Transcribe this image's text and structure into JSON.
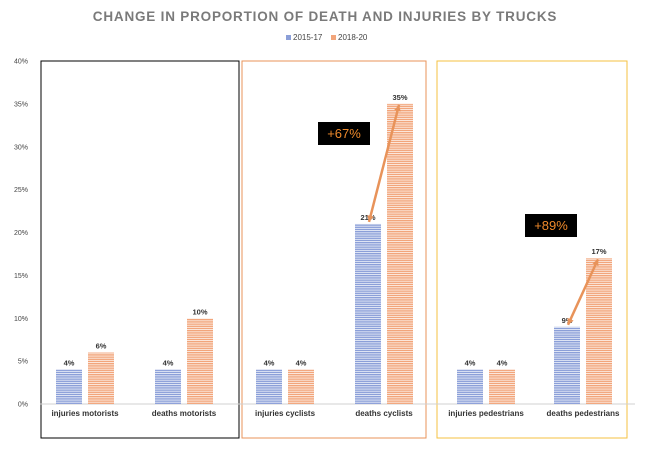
{
  "chart_data": {
    "type": "bar",
    "title": "CHANGE IN PROPORTION OF DEATH AND INJURIES BY TRUCKS",
    "xlabel": "",
    "ylabel": "",
    "ylim": [
      0,
      40
    ],
    "yticks": [
      "0%",
      "5%",
      "10%",
      "15%",
      "20%",
      "25%",
      "30%",
      "35%",
      "40%"
    ],
    "categories": [
      "injuries motorists",
      "deaths motorists",
      "injuries cyclists",
      "deaths cyclists",
      "injuries pedestrians",
      "deaths pedestrians"
    ],
    "series": [
      {
        "name": "2015-17",
        "values": [
          4,
          4,
          4,
          21,
          4,
          9
        ],
        "labels": [
          "4%",
          "4%",
          "4%",
          "21%",
          "4%",
          "9%"
        ],
        "color": "#8b9fd8"
      },
      {
        "name": "2018-20",
        "values": [
          6,
          10,
          4,
          35,
          4,
          17
        ],
        "labels": [
          "6%",
          "10%",
          "4%",
          "35%",
          "4%",
          "17%"
        ],
        "color": "#f2a57b"
      }
    ],
    "legend_position": "top-center",
    "grid": false,
    "groups": [
      {
        "categories": [
          0,
          1
        ],
        "border_color": "#000000"
      },
      {
        "categories": [
          2,
          3
        ],
        "border_color": "#e8935a"
      },
      {
        "categories": [
          4,
          5
        ],
        "border_color": "#f5c242"
      }
    ],
    "annotations": [
      {
        "text": "+67%",
        "from_category": 3,
        "from_value": 21,
        "to_value": 35
      },
      {
        "text": "+89%",
        "from_category": 5,
        "from_value": 9,
        "to_value": 17
      }
    ]
  }
}
